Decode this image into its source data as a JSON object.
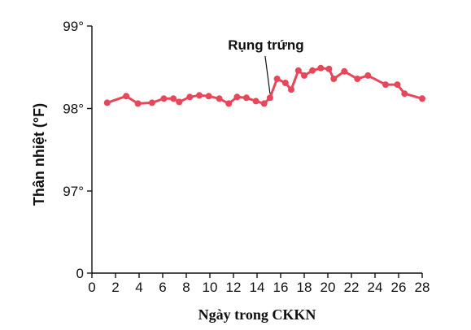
{
  "chart_data": {
    "type": "line",
    "title": "",
    "xlabel": "Ngày trong CKKN",
    "ylabel": "Thân nhiệt (°F)",
    "xlim": [
      0,
      28
    ],
    "y_ticks": [
      {
        "value": 0,
        "label": "0"
      },
      {
        "value": 97,
        "label": "97°"
      },
      {
        "value": 98,
        "label": "98°"
      },
      {
        "value": 99,
        "label": "99°"
      }
    ],
    "x_ticks": [
      0,
      2,
      4,
      6,
      8,
      10,
      12,
      14,
      16,
      18,
      20,
      22,
      24,
      26,
      28
    ],
    "x_tick_labels": [
      "0",
      "2",
      "4",
      "6",
      "8",
      "10",
      "12",
      "14",
      "16",
      "18",
      "20",
      "22",
      "24",
      "26",
      "28"
    ],
    "series_color": "#e8475a",
    "series": [
      {
        "x": [
          1.3,
          2.9,
          3.9,
          5.1,
          6.1,
          6.9,
          7.4,
          8.3,
          9.1,
          9.9,
          10.8,
          11.6,
          12.3,
          13.1,
          13.9,
          14.6,
          15.1,
          15.7,
          16.4,
          16.9,
          17.5,
          18.0,
          18.7,
          19.4,
          20.1,
          20.5,
          21.4,
          22.5,
          23.4,
          24.9,
          25.9,
          26.5,
          28.0
        ],
        "y": [
          98.07,
          98.15,
          98.06,
          98.07,
          98.12,
          98.12,
          98.08,
          98.14,
          98.16,
          98.15,
          98.12,
          98.06,
          98.14,
          98.13,
          98.09,
          98.06,
          98.13,
          98.36,
          98.31,
          98.23,
          98.46,
          98.4,
          98.46,
          98.49,
          98.48,
          98.36,
          98.45,
          98.36,
          98.4,
          98.29,
          98.29,
          98.18,
          98.12
        ]
      }
    ],
    "annotations": [
      {
        "text": "Rụng trứng",
        "x": 15.1,
        "y": 98.13
      }
    ],
    "grid": false,
    "legend": "none",
    "axis_break_between": [
      0,
      97
    ]
  }
}
